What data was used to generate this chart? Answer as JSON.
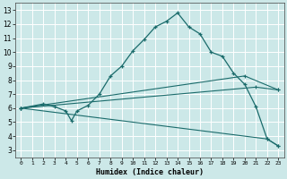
{
  "xlabel": "Humidex (Indice chaleur)",
  "bg_color": "#cce8e8",
  "line_color": "#1a6b6b",
  "grid_color": "#b8d8d8",
  "xlim": [
    -0.5,
    23.5
  ],
  "ylim": [
    2.5,
    13.5
  ],
  "xticks": [
    0,
    1,
    2,
    3,
    4,
    5,
    6,
    7,
    8,
    9,
    10,
    11,
    12,
    13,
    14,
    15,
    16,
    17,
    18,
    19,
    20,
    21,
    22,
    23
  ],
  "yticks": [
    3,
    4,
    5,
    6,
    7,
    8,
    9,
    10,
    11,
    12,
    13
  ],
  "line1_x": [
    0,
    2,
    3,
    4,
    4.5,
    5,
    6,
    7,
    8,
    9,
    10,
    11,
    12,
    13,
    14,
    15,
    16,
    17,
    18,
    19,
    20,
    21,
    22,
    23
  ],
  "line1_y": [
    6.0,
    6.3,
    6.1,
    5.8,
    5.1,
    5.8,
    6.2,
    7.0,
    8.3,
    9.0,
    10.1,
    10.9,
    11.8,
    12.2,
    12.8,
    11.8,
    11.3,
    10.0,
    9.7,
    8.5,
    7.7,
    6.1,
    3.8,
    3.3
  ],
  "line2_x": [
    0,
    20,
    23
  ],
  "line2_y": [
    6.0,
    8.3,
    7.3
  ],
  "line3_x": [
    0,
    21,
    23
  ],
  "line3_y": [
    6.0,
    7.5,
    7.3
  ],
  "line4_x": [
    0,
    22,
    23
  ],
  "line4_y": [
    6.0,
    3.8,
    3.3
  ]
}
